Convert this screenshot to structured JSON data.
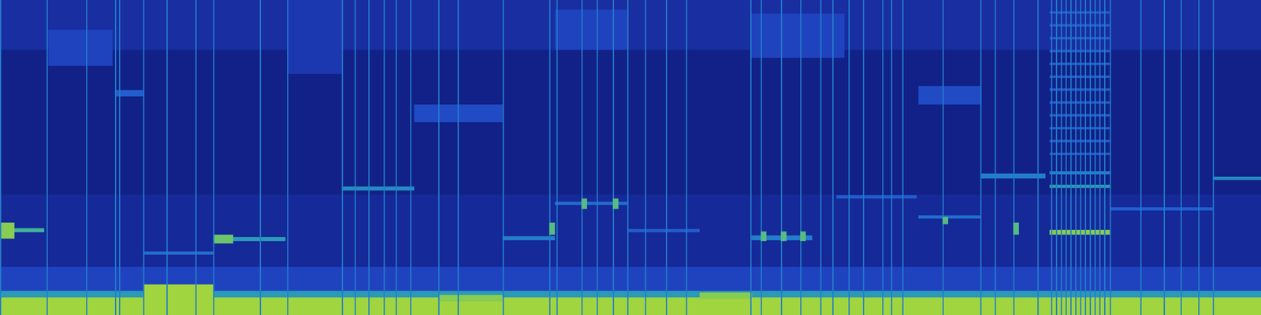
{
  "chart_data": {
    "type": "heatmap",
    "xlim": [
      0,
      1568
    ],
    "ylim": [
      0,
      392
    ],
    "zlim": [
      0,
      1
    ],
    "tick_labels": false,
    "cells": [
      {
        "x0": 0,
        "x1": 1568,
        "y0": 0,
        "y1": 392,
        "value": 0.12
      },
      {
        "x0": 0,
        "x1": 1568,
        "y0": 150,
        "y1": 330,
        "value": 0.07
      },
      {
        "x0": 0,
        "x1": 1568,
        "y0": 330,
        "y1": 392,
        "value": 0.15
      },
      {
        "x0": 0,
        "x1": 1568,
        "y0": 25,
        "y1": 60,
        "value": 0.25
      },
      {
        "x0": 0,
        "x1": 1568,
        "y0": 22,
        "y1": 30,
        "value": 0.55
      },
      {
        "x0": 0,
        "x1": 1568,
        "y0": 0,
        "y1": 22,
        "value": 0.85
      },
      {
        "x0": 357,
        "x1": 425,
        "y0": 300,
        "y1": 392,
        "value": 0.2
      },
      {
        "x0": 690,
        "x1": 780,
        "y0": 330,
        "y1": 380,
        "value": 0.25
      },
      {
        "x0": 933,
        "x1": 1050,
        "y0": 320,
        "y1": 375,
        "value": 0.25
      },
      {
        "x0": 60,
        "x1": 140,
        "y0": 310,
        "y1": 355,
        "value": 0.25
      },
      {
        "x0": 515,
        "x1": 625,
        "y0": 240,
        "y1": 262,
        "value": 0.28
      },
      {
        "x0": 1142,
        "x1": 1219,
        "y0": 262,
        "y1": 285,
        "value": 0.28
      },
      {
        "x0": 143,
        "x1": 178,
        "y0": 272,
        "y1": 280,
        "value": 0.35
      },
      {
        "x0": 0,
        "x1": 55,
        "y0": 103,
        "y1": 108,
        "value": 0.65
      },
      {
        "x0": 0,
        "x1": 18,
        "y0": 95,
        "y1": 115,
        "value": 0.8
      },
      {
        "x0": 265,
        "x1": 355,
        "y0": 92,
        "y1": 97,
        "value": 0.55
      },
      {
        "x0": 265,
        "x1": 290,
        "y0": 89,
        "y1": 100,
        "value": 0.75
      },
      {
        "x0": 178,
        "x1": 265,
        "y0": 75,
        "y1": 79,
        "value": 0.4
      },
      {
        "x0": 178,
        "x1": 265,
        "y0": 20,
        "y1": 38,
        "value": 0.85
      },
      {
        "x0": 545,
        "x1": 625,
        "y0": 17,
        "y1": 25,
        "value": 0.8
      },
      {
        "x0": 870,
        "x1": 935,
        "y0": 20,
        "y1": 28,
        "value": 0.8
      },
      {
        "x0": 425,
        "x1": 515,
        "y0": 155,
        "y1": 160,
        "value": 0.5
      },
      {
        "x0": 625,
        "x1": 690,
        "y0": 93,
        "y1": 98,
        "value": 0.45
      },
      {
        "x0": 690,
        "x1": 780,
        "y0": 137,
        "y1": 141,
        "value": 0.4
      },
      {
        "x0": 780,
        "x1": 870,
        "y0": 103,
        "y1": 107,
        "value": 0.35
      },
      {
        "x0": 933,
        "x1": 1010,
        "y0": 93,
        "y1": 99,
        "value": 0.45
      },
      {
        "x0": 1040,
        "x1": 1140,
        "y0": 145,
        "y1": 149,
        "value": 0.35
      },
      {
        "x0": 1142,
        "x1": 1219,
        "y0": 120,
        "y1": 124,
        "value": 0.4
      },
      {
        "x0": 1219,
        "x1": 1300,
        "y0": 170,
        "y1": 176,
        "value": 0.45
      },
      {
        "x0": 1305,
        "x1": 1380,
        "y0": 100,
        "y1": 106,
        "value": 0.8
      },
      {
        "x0": 1305,
        "x1": 1380,
        "y0": 158,
        "y1": 162,
        "value": 0.55
      },
      {
        "x0": 1305,
        "x1": 1380,
        "y0": 175,
        "y1": 179,
        "value": 0.45
      },
      {
        "x0": 1305,
        "x1": 1380,
        "y0": 199,
        "y1": 202,
        "value": 0.35
      },
      {
        "x0": 1305,
        "x1": 1380,
        "y0": 215,
        "y1": 218,
        "value": 0.35
      },
      {
        "x0": 1305,
        "x1": 1380,
        "y0": 231,
        "y1": 234,
        "value": 0.35
      },
      {
        "x0": 1305,
        "x1": 1380,
        "y0": 247,
        "y1": 250,
        "value": 0.35
      },
      {
        "x0": 1305,
        "x1": 1380,
        "y0": 263,
        "y1": 266,
        "value": 0.35
      },
      {
        "x0": 1305,
        "x1": 1380,
        "y0": 279,
        "y1": 282,
        "value": 0.35
      },
      {
        "x0": 1305,
        "x1": 1380,
        "y0": 295,
        "y1": 298,
        "value": 0.35
      },
      {
        "x0": 1305,
        "x1": 1380,
        "y0": 311,
        "y1": 314,
        "value": 0.35
      },
      {
        "x0": 1305,
        "x1": 1380,
        "y0": 327,
        "y1": 330,
        "value": 0.35
      },
      {
        "x0": 1305,
        "x1": 1380,
        "y0": 343,
        "y1": 346,
        "value": 0.35
      },
      {
        "x0": 1305,
        "x1": 1380,
        "y0": 359,
        "y1": 362,
        "value": 0.35
      },
      {
        "x0": 1305,
        "x1": 1380,
        "y0": 375,
        "y1": 378,
        "value": 0.35
      },
      {
        "x0": 1380,
        "x1": 1508,
        "y0": 130,
        "y1": 134,
        "value": 0.35
      },
      {
        "x0": 1508,
        "x1": 1568,
        "y0": 168,
        "y1": 172,
        "value": 0.5
      },
      {
        "x0": 0,
        "x1": 1.5,
        "y0": 0,
        "y1": 392,
        "value": 0.45
      },
      {
        "x0": 58,
        "x1": 59.5,
        "y0": 0,
        "y1": 392,
        "value": 0.45
      },
      {
        "x0": 107,
        "x1": 108.5,
        "y0": 0,
        "y1": 392,
        "value": 0.45
      },
      {
        "x0": 143,
        "x1": 144.5,
        "y0": 0,
        "y1": 392,
        "value": 0.45
      },
      {
        "x0": 148,
        "x1": 149.5,
        "y0": 0,
        "y1": 392,
        "value": 0.45
      },
      {
        "x0": 178,
        "x1": 179.5,
        "y0": 0,
        "y1": 392,
        "value": 0.45
      },
      {
        "x0": 207,
        "x1": 208.5,
        "y0": 0,
        "y1": 392,
        "value": 0.45
      },
      {
        "x0": 243,
        "x1": 244.5,
        "y0": 0,
        "y1": 392,
        "value": 0.45
      },
      {
        "x0": 265,
        "x1": 266.5,
        "y0": 0,
        "y1": 392,
        "value": 0.45
      },
      {
        "x0": 323,
        "x1": 324.5,
        "y0": 0,
        "y1": 392,
        "value": 0.45
      },
      {
        "x0": 357,
        "x1": 358.5,
        "y0": 0,
        "y1": 392,
        "value": 0.45
      },
      {
        "x0": 425,
        "x1": 426.5,
        "y0": 0,
        "y1": 392,
        "value": 0.45
      },
      {
        "x0": 441,
        "x1": 442.5,
        "y0": 0,
        "y1": 392,
        "value": 0.45
      },
      {
        "x0": 458,
        "x1": 459.5,
        "y0": 0,
        "y1": 392,
        "value": 0.45
      },
      {
        "x0": 477,
        "x1": 478.5,
        "y0": 0,
        "y1": 392,
        "value": 0.45
      },
      {
        "x0": 492,
        "x1": 493.5,
        "y0": 0,
        "y1": 392,
        "value": 0.45
      },
      {
        "x0": 510,
        "x1": 511.5,
        "y0": 0,
        "y1": 392,
        "value": 0.45
      },
      {
        "x0": 545,
        "x1": 546.5,
        "y0": 0,
        "y1": 392,
        "value": 0.45
      },
      {
        "x0": 569,
        "x1": 570.5,
        "y0": 0,
        "y1": 392,
        "value": 0.45
      },
      {
        "x0": 625,
        "x1": 626.5,
        "y0": 0,
        "y1": 392,
        "value": 0.45
      },
      {
        "x0": 683,
        "x1": 684.5,
        "y0": 0,
        "y1": 392,
        "value": 0.45
      },
      {
        "x0": 692,
        "x1": 693.5,
        "y0": 0,
        "y1": 392,
        "value": 0.45
      },
      {
        "x0": 723,
        "x1": 724.5,
        "y0": 0,
        "y1": 392,
        "value": 0.45
      },
      {
        "x0": 742,
        "x1": 743.5,
        "y0": 0,
        "y1": 392,
        "value": 0.45
      },
      {
        "x0": 762,
        "x1": 763.5,
        "y0": 0,
        "y1": 392,
        "value": 0.45
      },
      {
        "x0": 780,
        "x1": 781.5,
        "y0": 0,
        "y1": 392,
        "value": 0.45
      },
      {
        "x0": 802,
        "x1": 803.5,
        "y0": 0,
        "y1": 392,
        "value": 0.45
      },
      {
        "x0": 828,
        "x1": 829.5,
        "y0": 0,
        "y1": 392,
        "value": 0.45
      },
      {
        "x0": 853,
        "x1": 854.5,
        "y0": 0,
        "y1": 392,
        "value": 0.45
      },
      {
        "x0": 933,
        "x1": 934.5,
        "y0": 0,
        "y1": 392,
        "value": 0.45
      },
      {
        "x0": 946,
        "x1": 947.5,
        "y0": 0,
        "y1": 392,
        "value": 0.45
      },
      {
        "x0": 971,
        "x1": 972.5,
        "y0": 0,
        "y1": 392,
        "value": 0.45
      },
      {
        "x0": 995,
        "x1": 996.5,
        "y0": 0,
        "y1": 392,
        "value": 0.45
      },
      {
        "x0": 1020,
        "x1": 1021.5,
        "y0": 0,
        "y1": 392,
        "value": 0.45
      },
      {
        "x0": 1035,
        "x1": 1036.5,
        "y0": 0,
        "y1": 392,
        "value": 0.45
      },
      {
        "x0": 1055,
        "x1": 1056.5,
        "y0": 0,
        "y1": 392,
        "value": 0.45
      },
      {
        "x0": 1073,
        "x1": 1074.5,
        "y0": 0,
        "y1": 392,
        "value": 0.45
      },
      {
        "x0": 1097,
        "x1": 1098.5,
        "y0": 0,
        "y1": 392,
        "value": 0.45
      },
      {
        "x0": 1108,
        "x1": 1109.5,
        "y0": 0,
        "y1": 392,
        "value": 0.45
      },
      {
        "x0": 1122,
        "x1": 1123.5,
        "y0": 0,
        "y1": 392,
        "value": 0.45
      },
      {
        "x0": 1172,
        "x1": 1173.5,
        "y0": 0,
        "y1": 392,
        "value": 0.45
      },
      {
        "x0": 1219,
        "x1": 1220.5,
        "y0": 0,
        "y1": 392,
        "value": 0.45
      },
      {
        "x0": 1237,
        "x1": 1238.5,
        "y0": 0,
        "y1": 392,
        "value": 0.45
      },
      {
        "x0": 1260,
        "x1": 1261.5,
        "y0": 0,
        "y1": 392,
        "value": 0.45
      },
      {
        "x0": 1290,
        "x1": 1291.5,
        "y0": 0,
        "y1": 392,
        "value": 0.45
      },
      {
        "x0": 1307,
        "x1": 1308.5,
        "y0": 0,
        "y1": 392,
        "value": 0.45
      },
      {
        "x0": 1313,
        "x1": 1314.5,
        "y0": 0,
        "y1": 392,
        "value": 0.45
      },
      {
        "x0": 1319,
        "x1": 1320.5,
        "y0": 0,
        "y1": 392,
        "value": 0.45
      },
      {
        "x0": 1325,
        "x1": 1326.5,
        "y0": 0,
        "y1": 392,
        "value": 0.45
      },
      {
        "x0": 1331,
        "x1": 1332.5,
        "y0": 0,
        "y1": 392,
        "value": 0.45
      },
      {
        "x0": 1337,
        "x1": 1338.5,
        "y0": 0,
        "y1": 392,
        "value": 0.45
      },
      {
        "x0": 1343,
        "x1": 1344.5,
        "y0": 0,
        "y1": 392,
        "value": 0.45
      },
      {
        "x0": 1349,
        "x1": 1350.5,
        "y0": 0,
        "y1": 392,
        "value": 0.45
      },
      {
        "x0": 1355,
        "x1": 1356.5,
        "y0": 0,
        "y1": 392,
        "value": 0.45
      },
      {
        "x0": 1361,
        "x1": 1362.5,
        "y0": 0,
        "y1": 392,
        "value": 0.45
      },
      {
        "x0": 1367,
        "x1": 1368.5,
        "y0": 0,
        "y1": 392,
        "value": 0.45
      },
      {
        "x0": 1373,
        "x1": 1374.5,
        "y0": 0,
        "y1": 392,
        "value": 0.45
      },
      {
        "x0": 1380,
        "x1": 1381.5,
        "y0": 0,
        "y1": 392,
        "value": 0.45
      },
      {
        "x0": 1418,
        "x1": 1419.5,
        "y0": 0,
        "y1": 392,
        "value": 0.45
      },
      {
        "x0": 1447,
        "x1": 1448.5,
        "y0": 0,
        "y1": 392,
        "value": 0.45
      },
      {
        "x0": 1468,
        "x1": 1469.5,
        "y0": 0,
        "y1": 392,
        "value": 0.45
      },
      {
        "x0": 1490,
        "x1": 1491.5,
        "y0": 0,
        "y1": 392,
        "value": 0.45
      },
      {
        "x0": 1508,
        "x1": 1509.5,
        "y0": 0,
        "y1": 392,
        "value": 0.45
      },
      {
        "x0": 683,
        "x1": 690,
        "y0": 100,
        "y1": 115,
        "value": 0.7
      },
      {
        "x0": 723,
        "x1": 730,
        "y0": 132,
        "y1": 145,
        "value": 0.7
      },
      {
        "x0": 762,
        "x1": 769,
        "y0": 132,
        "y1": 145,
        "value": 0.7
      },
      {
        "x0": 946,
        "x1": 953,
        "y0": 92,
        "y1": 104,
        "value": 0.7
      },
      {
        "x0": 971,
        "x1": 978,
        "y0": 92,
        "y1": 104,
        "value": 0.7
      },
      {
        "x0": 995,
        "x1": 1002,
        "y0": 92,
        "y1": 104,
        "value": 0.7
      },
      {
        "x0": 1172,
        "x1": 1179,
        "y0": 113,
        "y1": 122,
        "value": 0.7
      },
      {
        "x0": 1260,
        "x1": 1267,
        "y0": 100,
        "y1": 115,
        "value": 0.7
      }
    ]
  }
}
